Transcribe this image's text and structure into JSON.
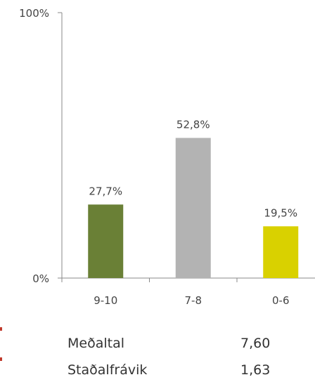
{
  "chart_data": {
    "type": "bar",
    "categories": [
      "9-10",
      "7-8",
      "0-6"
    ],
    "values": [
      27.7,
      52.8,
      19.5
    ],
    "data_labels": [
      "27,7%",
      "52,8%",
      "19,5%"
    ],
    "colors": [
      "#6a8036",
      "#b3b3b3",
      "#d9d100"
    ],
    "y_ticks": [
      "0%",
      "100%"
    ],
    "ylim": [
      0,
      100
    ],
    "grid": false,
    "legend": "none"
  },
  "stats": [
    {
      "label": "Meðaltal",
      "value": "7,60"
    },
    {
      "label": "Staðalfrávik",
      "value": "1,63"
    }
  ]
}
